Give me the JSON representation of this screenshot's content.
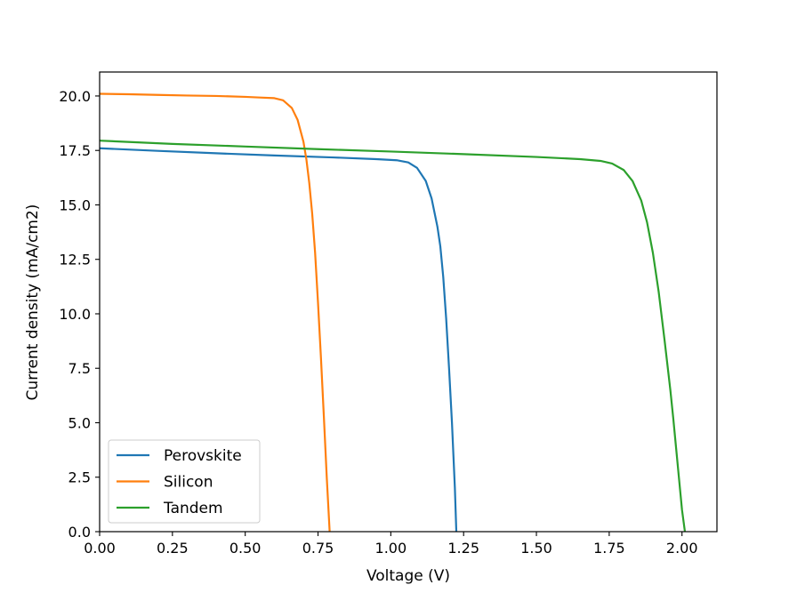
{
  "chart_data": {
    "type": "line",
    "title": "",
    "xlabel": "Voltage (V)",
    "ylabel": "Current density (mA/cm2)",
    "xlim": [
      0.0,
      2.12
    ],
    "ylim": [
      0.0,
      21.1
    ],
    "xticks": [
      "0.00",
      "0.25",
      "0.50",
      "0.75",
      "1.00",
      "1.25",
      "1.50",
      "1.75",
      "2.00"
    ],
    "xtick_values": [
      0.0,
      0.25,
      0.5,
      0.75,
      1.0,
      1.25,
      1.5,
      1.75,
      2.0
    ],
    "yticks": [
      "0.0",
      "2.5",
      "5.0",
      "7.5",
      "10.0",
      "12.5",
      "15.0",
      "17.5",
      "20.0"
    ],
    "ytick_values": [
      0.0,
      2.5,
      5.0,
      7.5,
      10.0,
      12.5,
      15.0,
      17.5,
      20.0
    ],
    "grid": false,
    "legend_position": "lower-left",
    "series": [
      {
        "name": "Perovskite",
        "color": "#1f77b4",
        "x": [
          0.0,
          0.2,
          0.4,
          0.6,
          0.8,
          0.95,
          1.02,
          1.06,
          1.09,
          1.12,
          1.14,
          1.16,
          1.17,
          1.18,
          1.19,
          1.2,
          1.21,
          1.22,
          1.225
        ],
        "y": [
          17.6,
          17.48,
          17.37,
          17.27,
          17.18,
          17.1,
          17.05,
          16.95,
          16.7,
          16.1,
          15.3,
          14.0,
          13.1,
          11.7,
          9.8,
          7.5,
          5.0,
          2.0,
          0.0
        ]
      },
      {
        "name": "Silicon",
        "color": "#ff7f0e",
        "x": [
          0.0,
          0.1,
          0.2,
          0.3,
          0.4,
          0.5,
          0.55,
          0.6,
          0.63,
          0.66,
          0.68,
          0.7,
          0.71,
          0.72,
          0.73,
          0.74,
          0.75,
          0.76,
          0.77,
          0.78,
          0.79
        ],
        "y": [
          20.1,
          20.08,
          20.05,
          20.02,
          20.0,
          19.96,
          19.93,
          19.9,
          19.8,
          19.45,
          18.9,
          17.9,
          17.1,
          16.0,
          14.6,
          12.8,
          10.5,
          8.0,
          5.3,
          2.5,
          0.0
        ]
      },
      {
        "name": "Tandem",
        "color": "#2ca02c",
        "x": [
          0.0,
          0.25,
          0.5,
          0.75,
          1.0,
          1.25,
          1.5,
          1.65,
          1.72,
          1.76,
          1.8,
          1.83,
          1.86,
          1.88,
          1.9,
          1.92,
          1.94,
          1.96,
          1.97,
          1.98,
          1.99,
          2.0,
          2.01
        ],
        "y": [
          17.95,
          17.8,
          17.68,
          17.56,
          17.45,
          17.33,
          17.2,
          17.1,
          17.02,
          16.9,
          16.6,
          16.1,
          15.2,
          14.2,
          12.8,
          11.0,
          8.8,
          6.5,
          5.2,
          3.8,
          2.4,
          1.0,
          0.0
        ]
      }
    ]
  }
}
